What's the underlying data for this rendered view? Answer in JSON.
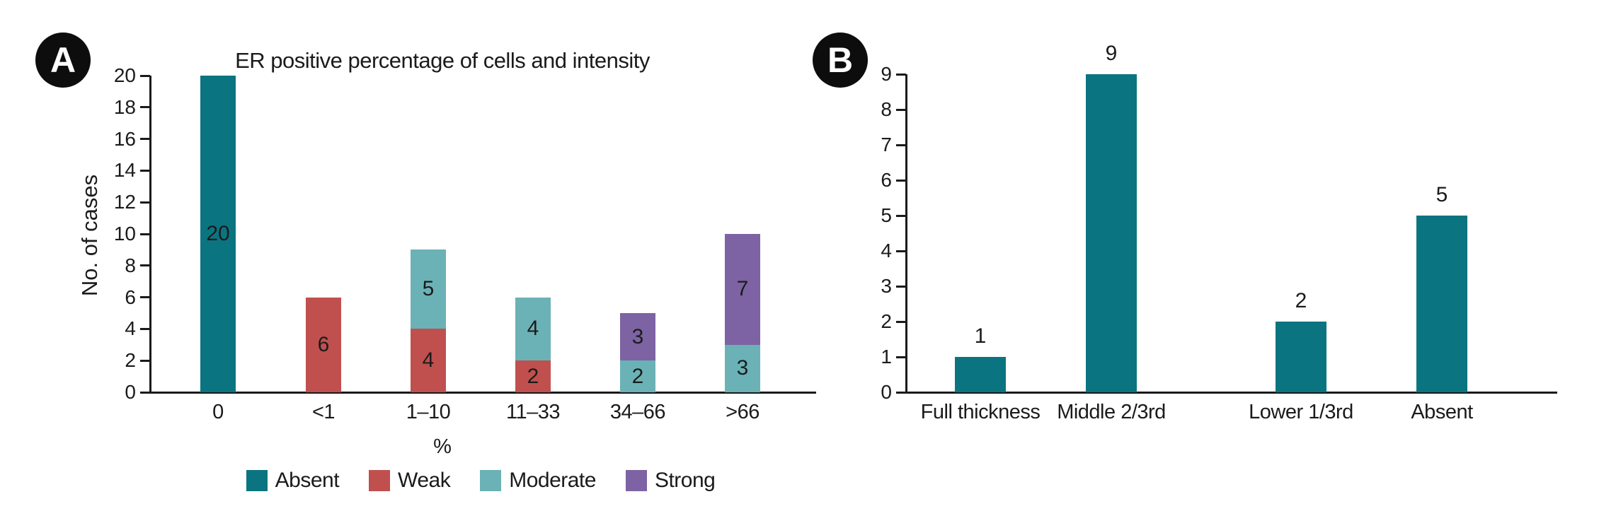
{
  "panels": {
    "a": {
      "badge": "A",
      "title": "ER positive percentage of cells and intensity",
      "ylabel": "No. of cases",
      "xlabel": "%"
    },
    "b": {
      "badge": "B"
    }
  },
  "colors": {
    "absent": "#0a7580",
    "weak": "#c0504e",
    "moderate": "#6bb2b6",
    "strong": "#7d63a3",
    "text": "#1b1b1b",
    "axis": "#1a1a1a"
  },
  "legend": [
    {
      "label": "Absent",
      "color": "#0a7580"
    },
    {
      "label": "Weak",
      "color": "#c0504e"
    },
    {
      "label": "Moderate",
      "color": "#6bb2b6"
    },
    {
      "label": "Strong",
      "color": "#7d63a3"
    }
  ],
  "chart_data": [
    {
      "id": "A",
      "type": "bar",
      "stacked": true,
      "title": "ER positive percentage of cells and intensity",
      "xlabel": "%",
      "ylabel": "No. of cases",
      "ylim": [
        0,
        20
      ],
      "ytick_step": 2,
      "grid": false,
      "legend_position": "bottom",
      "bar_value_labels": "inside",
      "categories": [
        "0",
        "<1",
        "1–10",
        "11–33",
        "34–66",
        ">66"
      ],
      "series": [
        {
          "name": "Absent",
          "color": "#0a7580",
          "values": [
            20,
            0,
            0,
            0,
            0,
            0
          ]
        },
        {
          "name": "Weak",
          "color": "#c0504e",
          "values": [
            0,
            6,
            4,
            2,
            0,
            0
          ]
        },
        {
          "name": "Moderate",
          "color": "#6bb2b6",
          "values": [
            0,
            0,
            5,
            4,
            2,
            3
          ]
        },
        {
          "name": "Strong",
          "color": "#7d63a3",
          "values": [
            0,
            0,
            0,
            0,
            3,
            7
          ]
        }
      ],
      "totals": [
        20,
        6,
        9,
        6,
        5,
        10
      ]
    },
    {
      "id": "B",
      "type": "bar",
      "stacked": false,
      "title": "",
      "xlabel": "",
      "ylabel": "",
      "ylim": [
        0,
        9
      ],
      "ytick_step": 1,
      "grid": false,
      "legend_position": "none",
      "bar_value_labels": "above",
      "categories": [
        "Full thickness",
        "Middle 2/3rd",
        "Lower 1/3rd",
        "Absent"
      ],
      "values": [
        1,
        9,
        2,
        5
      ],
      "color": "#0a7580"
    }
  ]
}
